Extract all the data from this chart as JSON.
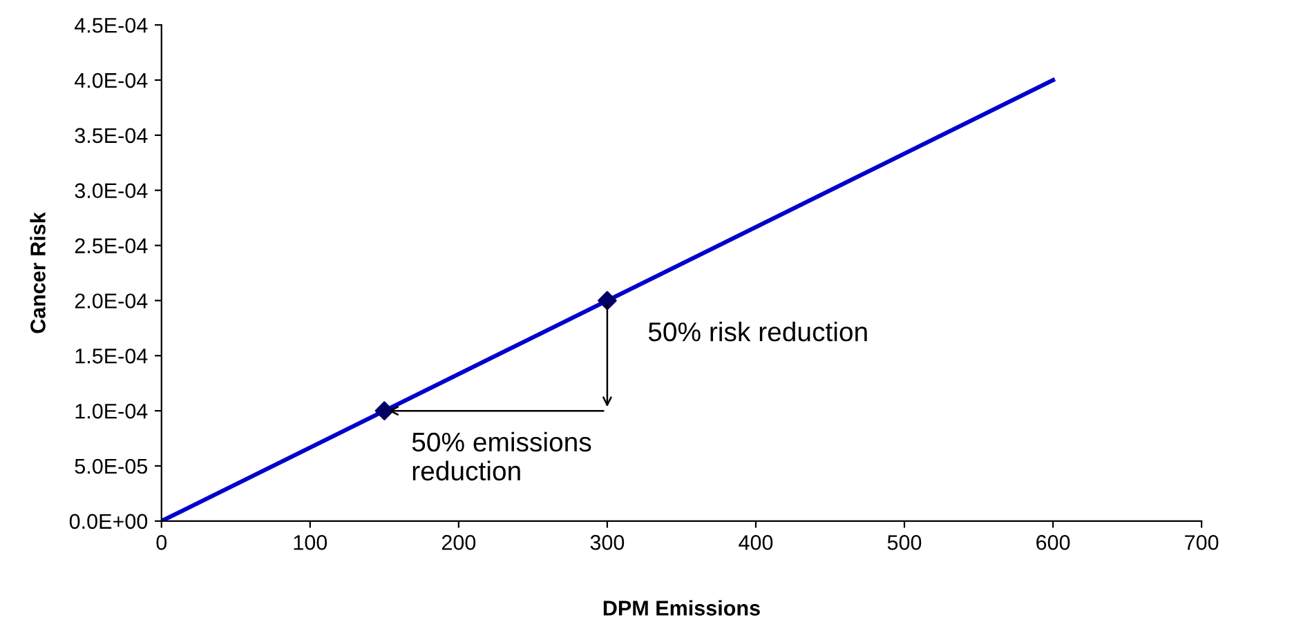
{
  "chart_data": {
    "type": "line",
    "xlabel": "DPM Emissions",
    "ylabel": "Cancer Risk",
    "series": [
      {
        "color": "#0000cc",
        "x": [
          0,
          600
        ],
        "values": [
          0,
          0.0004
        ],
        "marker": "none"
      },
      {
        "type": "scatter",
        "color": "#000066",
        "x": [
          150,
          300
        ],
        "values": [
          0.0001,
          0.0002
        ],
        "marker": "diamond"
      }
    ],
    "xlim": [
      0,
      700
    ],
    "xticks": [
      0,
      100,
      200,
      300,
      400,
      500,
      600,
      700
    ],
    "ylim": [
      0,
      0.00045
    ],
    "yticks": [
      {
        "value": 0,
        "label": "0.0E+00"
      },
      {
        "value": 5e-05,
        "label": "5.0E-05"
      },
      {
        "value": 0.0001,
        "label": "1.0E-04"
      },
      {
        "value": 0.00015,
        "label": "1.5E-04"
      },
      {
        "value": 0.0002,
        "label": "2.0E-04"
      },
      {
        "value": 0.00025,
        "label": "2.5E-04"
      },
      {
        "value": 0.0003,
        "label": "3.0E-04"
      },
      {
        "value": 0.00035,
        "label": "3.5E-04"
      },
      {
        "value": 0.0004,
        "label": "4.0E-04"
      },
      {
        "value": 0.00045,
        "label": "4.5E-04"
      }
    ],
    "annotations": [
      {
        "text": "50% risk reduction",
        "x": 300,
        "y": 0.0002
      },
      {
        "text": "50% emissions\nreduction",
        "x": 150,
        "y": 0.0001
      }
    ],
    "grid": false,
    "legend": false
  }
}
